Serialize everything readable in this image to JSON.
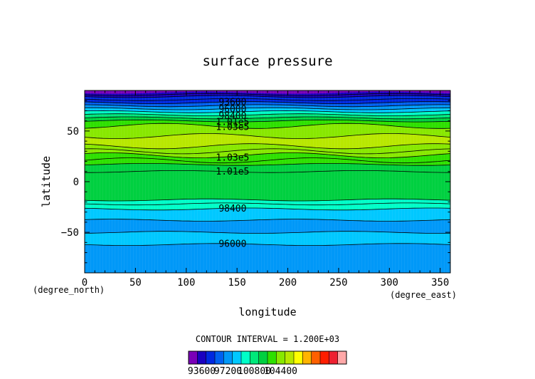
{
  "chart_data": {
    "type": "heatmap",
    "subtype": "filled-contour",
    "title": "surface pressure",
    "xlabel": "longitude",
    "ylabel": "latitude",
    "x_unit": "(degree_east)",
    "y_unit": "(degree_north)",
    "xlim": [
      0,
      360
    ],
    "ylim": [
      -90,
      90
    ],
    "x_ticks": [
      0,
      50,
      100,
      150,
      200,
      250,
      300,
      350
    ],
    "y_ticks": [
      -50,
      0,
      50
    ],
    "x_tick_labels": [
      "0",
      "50",
      "100",
      "150",
      "200",
      "250",
      "300",
      "350"
    ],
    "y_tick_labels": [
      "−50",
      "0",
      "50"
    ],
    "grid": false,
    "contour_interval_label": "CONTOUR INTERVAL = 1.200E+03",
    "band_latitudes": [
      -90,
      -62,
      -50,
      -38,
      -27,
      -22,
      -18,
      10,
      17,
      21,
      26,
      30,
      35,
      45,
      55,
      60,
      63,
      66,
      69,
      72,
      75,
      78,
      81,
      84,
      86,
      88,
      90
    ],
    "band_levels": [
      96000,
      97200,
      96600,
      97800,
      98400,
      99000,
      100800,
      101400,
      102000,
      102600,
      103200,
      103800,
      104400,
      103800,
      102600,
      101400,
      100200,
      99000,
      97800,
      96600,
      95400,
      94200,
      93600,
      93000,
      92400,
      91800
    ],
    "contour_lines": [
      {
        "lat": -62,
        "label": "96000",
        "label_lon": 133
      },
      {
        "lat": -27,
        "label": "98400",
        "label_lon": 133
      },
      {
        "lat": 10,
        "label": "1.01e5",
        "label_lon": 133
      },
      {
        "lat": 26,
        "label": "1.03e5",
        "label_lon": 133
      },
      {
        "lat": 55,
        "label": "1.03e5",
        "label_lon": 133
      },
      {
        "lat": 60,
        "label": "1.01e5",
        "label_lon": 133
      },
      {
        "lat": 66,
        "label": "98400",
        "label_lon": 133
      },
      {
        "lat": 72,
        "label": "96000",
        "label_lon": 133
      },
      {
        "lat": 78,
        "label": "93600",
        "label_lon": 133
      },
      {
        "lat": -50,
        "label": "",
        "label_lon": 0
      },
      {
        "lat": -38,
        "label": "",
        "label_lon": 0
      },
      {
        "lat": -22,
        "label": "",
        "label_lon": 0
      },
      {
        "lat": -18,
        "label": "",
        "label_lon": 0
      },
      {
        "lat": 17,
        "label": "",
        "label_lon": 0
      },
      {
        "lat": 21,
        "label": "",
        "label_lon": 0
      },
      {
        "lat": 30,
        "label": "",
        "label_lon": 0
      },
      {
        "lat": 35,
        "label": "",
        "label_lon": 0
      },
      {
        "lat": 45,
        "label": "",
        "label_lon": 0
      },
      {
        "lat": 63,
        "label": "",
        "label_lon": 0
      },
      {
        "lat": 69,
        "label": "",
        "label_lon": 0
      },
      {
        "lat": 75,
        "label": "",
        "label_lon": 0
      },
      {
        "lat": 81,
        "label": "",
        "label_lon": 0
      },
      {
        "lat": 84,
        "label": "",
        "label_lon": 0
      },
      {
        "lat": 86,
        "label": "",
        "label_lon": 0
      }
    ],
    "colorbar": {
      "min": 91800,
      "step": 1200,
      "tick_labels": [
        "93600",
        "97200",
        "100800",
        "104400"
      ],
      "colors": [
        "#7a00b8",
        "#1a00c0",
        "#0028e0",
        "#0060f0",
        "#0098f8",
        "#00c8ff",
        "#00ffc8",
        "#00e87a",
        "#00d040",
        "#2ee000",
        "#88e800",
        "#b8e800",
        "#ffff00",
        "#ffb400",
        "#ff6000",
        "#ff1e00",
        "#ee2030",
        "#ffa8a8"
      ]
    }
  }
}
